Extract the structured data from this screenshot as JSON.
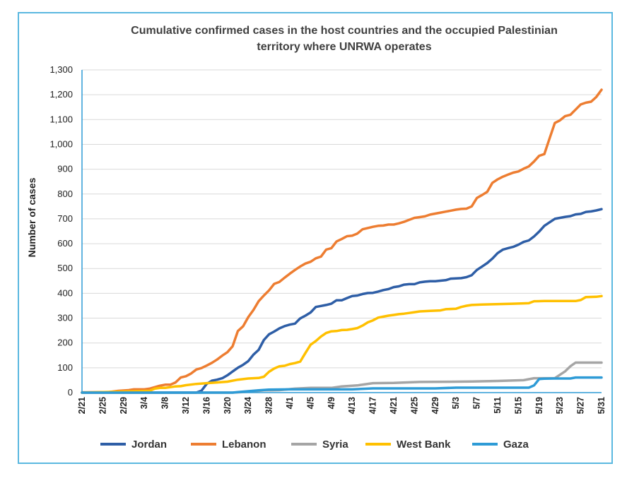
{
  "colors": {
    "frame": "#5bb8e0",
    "grid": "#d9d9d9",
    "axis": "#2e9bd6"
  },
  "chart_data": {
    "type": "line",
    "title_lines": [
      "Cumulative confirmed cases in the host countries and the occupied Palestinian",
      "territory where UNRWA operates"
    ],
    "xlabel": "",
    "ylabel": "Number of cases",
    "ylim": [
      0,
      1300
    ],
    "y_ticks": [
      "0",
      "100",
      "200",
      "300",
      "400",
      "500",
      "600",
      "700",
      "800",
      "900",
      "1,000",
      "1,100",
      "1,200",
      "1,300"
    ],
    "x_ticks": [
      "2/21",
      "2/25",
      "2/29",
      "3/4",
      "3/8",
      "3/12",
      "3/16",
      "3/20",
      "3/24",
      "3/28",
      "4/1",
      "4/5",
      "4/9",
      "4/13",
      "4/17",
      "4/21",
      "4/25",
      "4/29",
      "5/3",
      "5/7",
      "5/11",
      "5/15",
      "5/19",
      "5/23",
      "5/27",
      "5/31"
    ],
    "grid": true,
    "legend_position": "bottom",
    "series": [
      {
        "name": "Jordan",
        "color": "#2e5ea6",
        "points": [
          [
            "2/21",
            0
          ],
          [
            "3/14",
            0
          ],
          [
            "3/15",
            8
          ],
          [
            "3/16",
            35
          ],
          [
            "3/17",
            48
          ],
          [
            "3/18",
            52
          ],
          [
            "3/19",
            58
          ],
          [
            "3/20",
            70
          ],
          [
            "3/21",
            85
          ],
          [
            "3/22",
            100
          ],
          [
            "3/23",
            112
          ],
          [
            "3/24",
            127
          ],
          [
            "3/25",
            153
          ],
          [
            "3/26",
            172
          ],
          [
            "3/27",
            212
          ],
          [
            "3/28",
            235
          ],
          [
            "3/29",
            246
          ],
          [
            "3/30",
            259
          ],
          [
            "3/31",
            268
          ],
          [
            "4/1",
            274
          ],
          [
            "4/2",
            278
          ],
          [
            "4/3",
            299
          ],
          [
            "4/4",
            310
          ],
          [
            "4/5",
            323
          ],
          [
            "4/6",
            345
          ],
          [
            "4/7",
            349
          ],
          [
            "4/8",
            353
          ],
          [
            "4/9",
            358
          ],
          [
            "4/10",
            372
          ],
          [
            "4/11",
            372
          ],
          [
            "4/12",
            381
          ],
          [
            "4/13",
            389
          ],
          [
            "4/14",
            391
          ],
          [
            "4/15",
            397
          ],
          [
            "4/16",
            401
          ],
          [
            "4/17",
            402
          ],
          [
            "4/18",
            407
          ],
          [
            "4/19",
            413
          ],
          [
            "4/20",
            417
          ],
          [
            "4/21",
            425
          ],
          [
            "4/22",
            428
          ],
          [
            "4/23",
            435
          ],
          [
            "4/24",
            437
          ],
          [
            "4/25",
            437
          ],
          [
            "4/26",
            444
          ],
          [
            "4/27",
            447
          ],
          [
            "4/28",
            449
          ],
          [
            "4/29",
            449
          ],
          [
            "4/30",
            451
          ],
          [
            "5/1",
            453
          ],
          [
            "5/2",
            459
          ],
          [
            "5/3",
            460
          ],
          [
            "5/4",
            461
          ],
          [
            "5/5",
            465
          ],
          [
            "5/6",
            473
          ],
          [
            "5/7",
            494
          ],
          [
            "5/8",
            508
          ],
          [
            "5/9",
            522
          ],
          [
            "5/10",
            540
          ],
          [
            "5/11",
            562
          ],
          [
            "5/12",
            576
          ],
          [
            "5/13",
            582
          ],
          [
            "5/14",
            587
          ],
          [
            "5/15",
            596
          ],
          [
            "5/16",
            607
          ],
          [
            "5/17",
            613
          ],
          [
            "5/18",
            629
          ],
          [
            "5/19",
            649
          ],
          [
            "5/20",
            672
          ],
          [
            "5/21",
            686
          ],
          [
            "5/22",
            700
          ],
          [
            "5/23",
            704
          ],
          [
            "5/24",
            708
          ],
          [
            "5/25",
            711
          ],
          [
            "5/26",
            718
          ],
          [
            "5/27",
            720
          ],
          [
            "5/28",
            728
          ],
          [
            "5/29",
            730
          ],
          [
            "5/30",
            734
          ],
          [
            "5/31",
            739
          ]
        ]
      },
      {
        "name": "Lebanon",
        "color": "#ed7d31",
        "points": [
          [
            "2/21",
            1
          ],
          [
            "2/26",
            2
          ],
          [
            "2/28",
            7
          ],
          [
            "3/1",
            10
          ],
          [
            "3/2",
            13
          ],
          [
            "3/3",
            13
          ],
          [
            "3/4",
            13
          ],
          [
            "3/5",
            16
          ],
          [
            "3/6",
            22
          ],
          [
            "3/7",
            28
          ],
          [
            "3/8",
            32
          ],
          [
            "3/9",
            32
          ],
          [
            "3/10",
            41
          ],
          [
            "3/11",
            61
          ],
          [
            "3/12",
            66
          ],
          [
            "3/13",
            77
          ],
          [
            "3/14",
            93
          ],
          [
            "3/15",
            99
          ],
          [
            "3/16",
            109
          ],
          [
            "3/17",
            120
          ],
          [
            "3/18",
            133
          ],
          [
            "3/19",
            149
          ],
          [
            "3/20",
            163
          ],
          [
            "3/21",
            187
          ],
          [
            "3/22",
            248
          ],
          [
            "3/23",
            267
          ],
          [
            "3/24",
            304
          ],
          [
            "3/25",
            333
          ],
          [
            "3/26",
            368
          ],
          [
            "3/27",
            391
          ],
          [
            "3/28",
            412
          ],
          [
            "3/29",
            438
          ],
          [
            "3/30",
            446
          ],
          [
            "3/31",
            463
          ],
          [
            "4/1",
            479
          ],
          [
            "4/2",
            494
          ],
          [
            "4/3",
            508
          ],
          [
            "4/4",
            520
          ],
          [
            "4/5",
            527
          ],
          [
            "4/6",
            541
          ],
          [
            "4/7",
            548
          ],
          [
            "4/8",
            576
          ],
          [
            "4/9",
            582
          ],
          [
            "4/10",
            609
          ],
          [
            "4/11",
            619
          ],
          [
            "4/12",
            630
          ],
          [
            "4/13",
            632
          ],
          [
            "4/14",
            641
          ],
          [
            "4/15",
            658
          ],
          [
            "4/16",
            663
          ],
          [
            "4/17",
            668
          ],
          [
            "4/18",
            672
          ],
          [
            "4/19",
            673
          ],
          [
            "4/20",
            677
          ],
          [
            "4/21",
            677
          ],
          [
            "4/22",
            682
          ],
          [
            "4/23",
            688
          ],
          [
            "4/24",
            696
          ],
          [
            "4/25",
            704
          ],
          [
            "4/26",
            707
          ],
          [
            "4/27",
            710
          ],
          [
            "4/28",
            717
          ],
          [
            "4/29",
            721
          ],
          [
            "4/30",
            725
          ],
          [
            "5/1",
            729
          ],
          [
            "5/2",
            733
          ],
          [
            "5/3",
            737
          ],
          [
            "5/4",
            740
          ],
          [
            "5/5",
            741
          ],
          [
            "5/6",
            750
          ],
          [
            "5/7",
            784
          ],
          [
            "5/8",
            796
          ],
          [
            "5/9",
            809
          ],
          [
            "5/10",
            845
          ],
          [
            "5/11",
            859
          ],
          [
            "5/12",
            870
          ],
          [
            "5/13",
            878
          ],
          [
            "5/14",
            886
          ],
          [
            "5/15",
            891
          ],
          [
            "5/16",
            902
          ],
          [
            "5/17",
            911
          ],
          [
            "5/18",
            931
          ],
          [
            "5/19",
            954
          ],
          [
            "5/20",
            961
          ],
          [
            "5/21",
            1024
          ],
          [
            "5/22",
            1086
          ],
          [
            "5/23",
            1097
          ],
          [
            "5/24",
            1114
          ],
          [
            "5/25",
            1119
          ],
          [
            "5/26",
            1140
          ],
          [
            "5/27",
            1161
          ],
          [
            "5/28",
            1168
          ],
          [
            "5/29",
            1172
          ],
          [
            "5/30",
            1191
          ],
          [
            "5/31",
            1220
          ]
        ]
      },
      {
        "name": "Syria",
        "color": "#a5a5a5",
        "points": [
          [
            "2/21",
            0
          ],
          [
            "3/21",
            0
          ],
          [
            "3/22",
            1
          ],
          [
            "3/25",
            5
          ],
          [
            "3/27",
            9
          ],
          [
            "3/30",
            10
          ],
          [
            "4/2",
            16
          ],
          [
            "4/5",
            19
          ],
          [
            "4/9",
            19
          ],
          [
            "4/11",
            25
          ],
          [
            "4/14",
            29
          ],
          [
            "4/17",
            38
          ],
          [
            "4/21",
            39
          ],
          [
            "4/26",
            43
          ],
          [
            "5/3",
            44
          ],
          [
            "5/6",
            45
          ],
          [
            "5/11",
            47
          ],
          [
            "5/16",
            50
          ],
          [
            "5/18",
            58
          ],
          [
            "5/20",
            58
          ],
          [
            "5/22",
            58
          ],
          [
            "5/24",
            86
          ],
          [
            "5/25",
            106
          ],
          [
            "5/26",
            121
          ],
          [
            "5/28",
            121
          ],
          [
            "5/31",
            121
          ]
        ]
      },
      {
        "name": "West Bank",
        "color": "#ffc000",
        "points": [
          [
            "2/21",
            0
          ],
          [
            "3/5",
            7
          ],
          [
            "3/6",
            16
          ],
          [
            "3/7",
            19
          ],
          [
            "3/8",
            19
          ],
          [
            "3/9",
            22
          ],
          [
            "3/10",
            25
          ],
          [
            "3/11",
            26
          ],
          [
            "3/12",
            30
          ],
          [
            "3/14",
            35
          ],
          [
            "3/16",
            38
          ],
          [
            "3/18",
            41
          ],
          [
            "3/20",
            44
          ],
          [
            "3/22",
            52
          ],
          [
            "3/24",
            57
          ],
          [
            "3/26",
            59
          ],
          [
            "3/27",
            64
          ],
          [
            "3/28",
            84
          ],
          [
            "3/29",
            97
          ],
          [
            "3/30",
            106
          ],
          [
            "3/31",
            108
          ],
          [
            "4/1",
            115
          ],
          [
            "4/2",
            119
          ],
          [
            "4/3",
            125
          ],
          [
            "4/4",
            160
          ],
          [
            "4/5",
            193
          ],
          [
            "4/6",
            208
          ],
          [
            "4/7",
            226
          ],
          [
            "4/8",
            240
          ],
          [
            "4/9",
            247
          ],
          [
            "4/10",
            248
          ],
          [
            "4/11",
            252
          ],
          [
            "4/12",
            253
          ],
          [
            "4/13",
            256
          ],
          [
            "4/14",
            260
          ],
          [
            "4/15",
            270
          ],
          [
            "4/16",
            283
          ],
          [
            "4/17",
            291
          ],
          [
            "4/18",
            302
          ],
          [
            "4/19",
            306
          ],
          [
            "4/20",
            310
          ],
          [
            "4/21",
            313
          ],
          [
            "4/22",
            316
          ],
          [
            "4/23",
            318
          ],
          [
            "4/24",
            321
          ],
          [
            "4/25",
            324
          ],
          [
            "4/26",
            327
          ],
          [
            "4/28",
            329
          ],
          [
            "4/30",
            331
          ],
          [
            "5/1",
            336
          ],
          [
            "5/3",
            338
          ],
          [
            "5/4",
            345
          ],
          [
            "5/5",
            350
          ],
          [
            "5/6",
            353
          ],
          [
            "5/8",
            355
          ],
          [
            "5/10",
            356
          ],
          [
            "5/12",
            357
          ],
          [
            "5/14",
            358
          ],
          [
            "5/17",
            360
          ],
          [
            "5/18",
            368
          ],
          [
            "5/20",
            369
          ],
          [
            "5/26",
            369
          ],
          [
            "5/27",
            373
          ],
          [
            "5/28",
            385
          ],
          [
            "5/30",
            386
          ],
          [
            "5/31",
            389
          ]
        ]
      },
      {
        "name": "Gaza",
        "color": "#2e9bd6",
        "points": [
          [
            "2/21",
            0
          ],
          [
            "3/21",
            0
          ],
          [
            "3/22",
            2
          ],
          [
            "3/26",
            9
          ],
          [
            "3/28",
            12
          ],
          [
            "4/1",
            13
          ],
          [
            "4/5",
            13
          ],
          [
            "4/9",
            13
          ],
          [
            "4/13",
            13
          ],
          [
            "4/17",
            17
          ],
          [
            "4/21",
            17
          ],
          [
            "4/25",
            17
          ],
          [
            "4/29",
            17
          ],
          [
            "5/3",
            20
          ],
          [
            "5/7",
            20
          ],
          [
            "5/11",
            20
          ],
          [
            "5/15",
            20
          ],
          [
            "5/17",
            20
          ],
          [
            "5/18",
            29
          ],
          [
            "5/19",
            55
          ],
          [
            "5/20",
            56
          ],
          [
            "5/22",
            57
          ],
          [
            "5/25",
            57
          ],
          [
            "5/26",
            61
          ],
          [
            "5/28",
            61
          ],
          [
            "5/31",
            61
          ]
        ]
      }
    ]
  }
}
